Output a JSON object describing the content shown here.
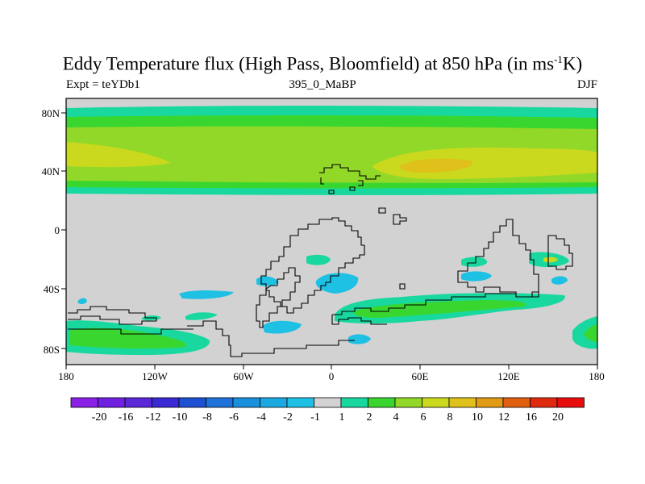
{
  "title": {
    "main": "Eddy Temperature flux (High Pass, Bloomfield) at 850 hPa (in ms",
    "sup": "-1",
    "end": "K)"
  },
  "subtitle_left": "Expt = teYDb1",
  "subtitle_center": "395_0_MaBP",
  "subtitle_right": "DJF",
  "lat_labels": [
    "80N",
    "40N",
    "0",
    "40S",
    "80S"
  ],
  "lon_labels": [
    "180",
    "120W",
    "60W",
    "0",
    "60E",
    "120E",
    "180"
  ],
  "colorbar": {
    "labels": [
      "-20",
      "-16",
      "-12",
      "-10",
      "-8",
      "-6",
      "-4",
      "-2",
      "-1",
      "1",
      "2",
      "4",
      "6",
      "8",
      "10",
      "12",
      "16",
      "20"
    ],
    "colors": [
      "#8a1fe6",
      "#7020e0",
      "#5a28d8",
      "#3a2ad4",
      "#1e50d2",
      "#1e72d8",
      "#1a90dc",
      "#1aa8e0",
      "#1ec0e4",
      "#d2d2d2",
      "#18d8a0",
      "#3ad630",
      "#92d828",
      "#cad81e",
      "#e0c01a",
      "#e09a14",
      "#e06010",
      "#e02a0e",
      "#e80c0c"
    ]
  },
  "map": {
    "colors": {
      "background": "#d2d2d2",
      "teal": "#18d8a0",
      "green": "#3ad630",
      "lime": "#92d828",
      "yellow": "#cad81e",
      "orange": "#e0c01a",
      "cyan": "#1ec0e4",
      "blue": "#1aa8e0",
      "coast": "#000000"
    }
  }
}
